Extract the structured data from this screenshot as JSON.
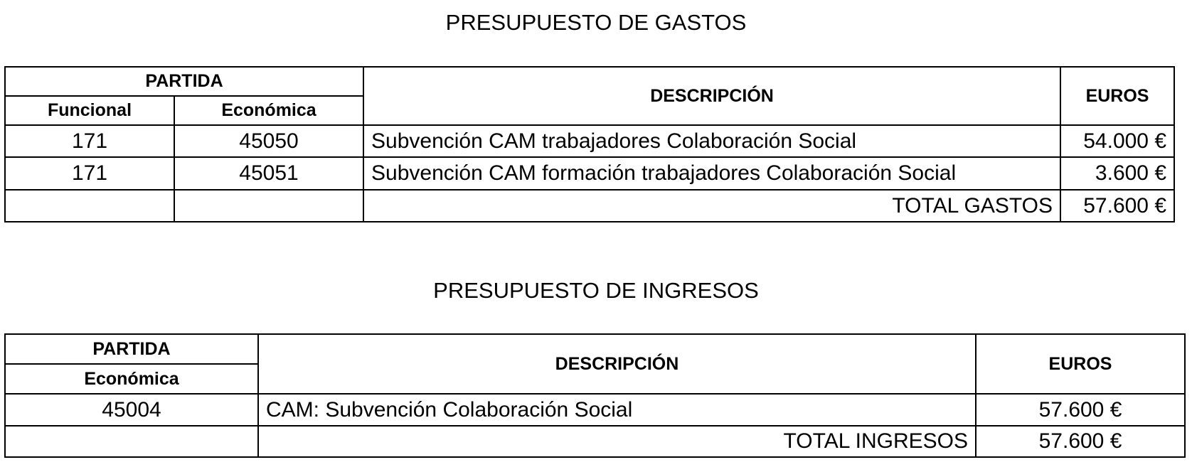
{
  "gastos": {
    "title": "PRESUPUESTO DE GASTOS",
    "headers": {
      "partida": "PARTIDA",
      "funcional": "Funcional",
      "economica": "Económica",
      "descripcion": "DESCRIPCIÓN",
      "euros": "EUROS"
    },
    "rows": [
      {
        "funcional": "171",
        "economica": "45050",
        "descripcion": "Subvención CAM trabajadores Colaboración Social",
        "euros": "54.000 €"
      },
      {
        "funcional": "171",
        "economica": "45051",
        "descripcion": "Subvención CAM formación trabajadores Colaboración Social",
        "euros": "3.600 €"
      }
    ],
    "total_label": "TOTAL GASTOS",
    "total_value": "57.600 €"
  },
  "ingresos": {
    "title": "PRESUPUESTO DE INGRESOS",
    "headers": {
      "partida": "PARTIDA",
      "economica": "Económica",
      "descripcion": "DESCRIPCIÓN",
      "euros": "EUROS"
    },
    "rows": [
      {
        "economica": "45004",
        "descripcion": "CAM: Subvención Colaboración Social",
        "euros": "57.600 €"
      }
    ],
    "total_label": "TOTAL INGRESOS",
    "total_value": "57.600 €"
  }
}
